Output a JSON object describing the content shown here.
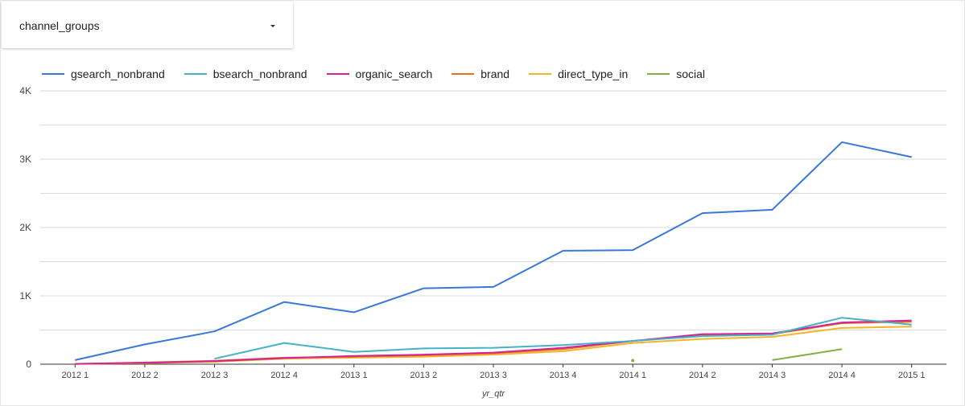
{
  "filter": {
    "label": "channel_groups"
  },
  "chart_data": {
    "type": "line",
    "xlabel": "yr_qtr",
    "ylabel": "",
    "ylim": [
      0,
      4000
    ],
    "yticks": [
      0,
      1000,
      2000,
      3000,
      4000
    ],
    "ytick_labels": [
      "0",
      "1K",
      "2K",
      "3K",
      "4K"
    ],
    "grid": true,
    "legend_placement": "top",
    "categories": [
      "2012 1",
      "2012 2",
      "2012 3",
      "2012 4",
      "2013 1",
      "2013 2",
      "2013 3",
      "2013 4",
      "2014 1",
      "2014 2",
      "2014 3",
      "2014 4",
      "2015 1"
    ],
    "series": [
      {
        "name": "gsearch_nonbrand",
        "color": "#3a78d8",
        "values": [
          60,
          290,
          480,
          910,
          760,
          1110,
          1130,
          1660,
          1670,
          2210,
          2260,
          3250,
          3030
        ]
      },
      {
        "name": "bsearch_nonbrand",
        "color": "#45b2c7",
        "values": [
          null,
          null,
          80,
          310,
          180,
          230,
          240,
          280,
          340,
          410,
          430,
          680,
          580
        ]
      },
      {
        "name": "organic_search",
        "color": "#d3239a",
        "values": [
          5,
          20,
          45,
          90,
          120,
          140,
          170,
          240,
          340,
          440,
          450,
          610,
          640
        ]
      },
      {
        "name": "brand",
        "color": "#e8711b",
        "values": [
          5,
          25,
          50,
          95,
          110,
          130,
          160,
          220,
          340,
          420,
          440,
          600,
          620
        ]
      },
      {
        "name": "direct_type_in",
        "color": "#f4b328",
        "values": [
          5,
          15,
          35,
          80,
          95,
          110,
          140,
          190,
          310,
          370,
          400,
          530,
          550
        ]
      },
      {
        "name": "social",
        "color": "#7cb342",
        "values": [
          null,
          null,
          null,
          null,
          null,
          null,
          null,
          null,
          55,
          null,
          60,
          220,
          null
        ]
      }
    ]
  }
}
